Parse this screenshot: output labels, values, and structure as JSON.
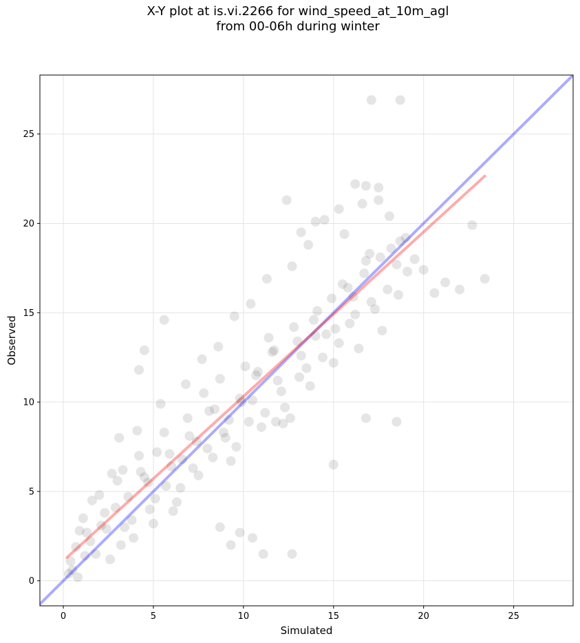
{
  "chart_data": {
    "type": "scatter",
    "title": "X-Y plot at is.vi.2266 for wind_speed_at_10m_agl",
    "subtitle": "from 00-06h during winter",
    "xlabel": "Simulated",
    "ylabel": "Observed",
    "xlim": [
      -1.3,
      28.3
    ],
    "ylim": [
      -1.4,
      28.3
    ],
    "xticks": [
      0,
      5,
      10,
      15,
      20,
      25
    ],
    "yticks": [
      0,
      5,
      10,
      15,
      20,
      25
    ],
    "grid": true,
    "point_color": "#333333",
    "point_alpha": 0.13,
    "series": [
      {
        "type": "scatter",
        "x": [
          0.5,
          0.9,
          1.2,
          1.6,
          2.1,
          2.6,
          3.0,
          3.4,
          3.9,
          4.3,
          4.8,
          5.2,
          5.7,
          6.1,
          6.6,
          7.0,
          7.5,
          8.0,
          8.4,
          8.9,
          9.3,
          9.8,
          10.3,
          10.7,
          11.2,
          11.6,
          12.1,
          12.6,
          13.0,
          13.5,
          13.9,
          14.4,
          14.9,
          15.3,
          15.8,
          16.2,
          16.7,
          17.1,
          17.6,
          18.0,
          18.5,
          19.0,
          19.5,
          20.0,
          20.6,
          21.2,
          22.0,
          22.7,
          23.4,
          0.3,
          0.7,
          1.1,
          1.5,
          2.0,
          2.4,
          2.9,
          3.3,
          3.8,
          4.2,
          4.7,
          5.1,
          5.6,
          6.0,
          6.5,
          6.9,
          7.4,
          7.8,
          8.3,
          8.7,
          9.2,
          9.6,
          10.1,
          10.5,
          11.0,
          11.4,
          11.9,
          12.3,
          12.8,
          13.2,
          13.7,
          14.1,
          14.6,
          15.0,
          15.5,
          15.9,
          16.4,
          16.8,
          17.3,
          17.7,
          18.2,
          18.6,
          19.1,
          0.4,
          0.8,
          1.3,
          1.8,
          2.3,
          2.7,
          3.2,
          3.6,
          4.1,
          4.5,
          5.0,
          5.4,
          5.9,
          6.3,
          6.8,
          7.2,
          7.7,
          8.1,
          8.6,
          9.0,
          9.5,
          9.9,
          10.4,
          10.8,
          11.3,
          11.7,
          12.2,
          12.7,
          13.1,
          13.6,
          14.0,
          14.5,
          15.1,
          15.6,
          16.1,
          16.6,
          17.0,
          17.5,
          18.1,
          18.7,
          17.1,
          18.7,
          16.2,
          16.8,
          17.5,
          12.4,
          14.0,
          13.2,
          15.3,
          11.8,
          4.5,
          4.2,
          5.6,
          11.1,
          12.7,
          9.3,
          8.7,
          9.8,
          10.5,
          3.1,
          16.8,
          15.0,
          18.5
        ],
        "y": [
          0.6,
          2.8,
          1.4,
          4.5,
          3.1,
          1.2,
          5.6,
          3.0,
          2.4,
          6.1,
          4.0,
          7.2,
          5.3,
          3.9,
          6.8,
          8.1,
          5.9,
          7.4,
          9.6,
          8.3,
          6.7,
          10.2,
          8.9,
          11.5,
          9.4,
          12.8,
          10.6,
          9.1,
          13.4,
          11.9,
          14.6,
          12.5,
          15.8,
          13.3,
          16.4,
          14.9,
          17.2,
          15.6,
          18.1,
          16.3,
          17.7,
          19.2,
          18.0,
          17.4,
          16.1,
          16.7,
          16.3,
          19.9,
          16.9,
          0.4,
          1.9,
          3.5,
          2.2,
          4.8,
          2.9,
          4.1,
          6.2,
          3.4,
          7.0,
          5.5,
          4.6,
          8.3,
          6.4,
          5.2,
          9.1,
          7.8,
          10.5,
          6.9,
          11.3,
          9.0,
          7.5,
          12.0,
          10.1,
          8.6,
          13.6,
          11.2,
          9.7,
          14.2,
          12.6,
          10.9,
          15.1,
          13.8,
          12.2,
          16.6,
          14.4,
          13.0,
          17.9,
          15.2,
          14.0,
          18.6,
          16.0,
          17.3,
          1.1,
          0.2,
          2.7,
          1.5,
          3.8,
          6.0,
          2.0,
          4.7,
          8.4,
          5.8,
          3.2,
          9.9,
          7.1,
          4.4,
          11.0,
          6.3,
          12.4,
          9.5,
          13.1,
          8.0,
          14.8,
          10.0,
          15.5,
          11.7,
          16.9,
          12.9,
          8.8,
          17.6,
          11.4,
          18.8,
          13.7,
          20.2,
          14.1,
          19.4,
          15.9,
          21.1,
          18.3,
          22.0,
          20.4,
          19.0,
          26.9,
          26.9,
          22.2,
          22.1,
          21.3,
          21.3,
          20.1,
          19.5,
          20.8,
          8.9,
          12.9,
          11.8,
          14.6,
          1.5,
          1.5,
          2.0,
          3.0,
          2.7,
          2.4,
          8.0,
          9.1,
          6.5,
          8.9
        ]
      }
    ],
    "lines": [
      {
        "name": "",
        "color": "#0000ff",
        "alpha": 0.33,
        "x": [
          -1.3,
          28.3
        ],
        "y": [
          -1.3,
          28.3
        ]
      },
      {
        "name": "",
        "color": "#ff0000",
        "alpha": 0.33,
        "x": [
          0.2,
          23.4
        ],
        "y": [
          1.3,
          22.65
        ]
      }
    ]
  }
}
